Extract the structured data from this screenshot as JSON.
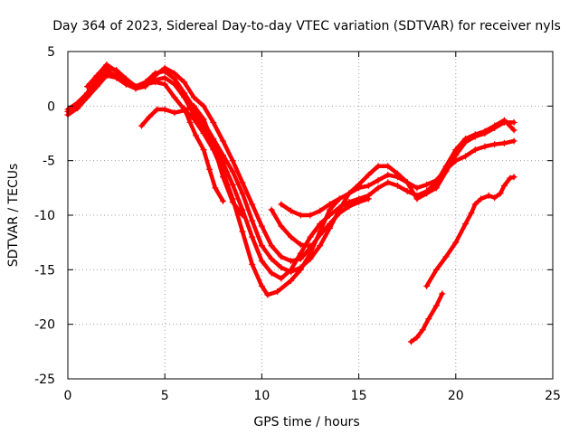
{
  "chart_data": {
    "type": "scatter",
    "title": "Day 364 of 2023, Sidereal Day-to-day VTEC variation (SDTVAR) for receiver nyls",
    "xlabel": "GPS time / hours",
    "ylabel": "SDTVAR / TECUs",
    "xlim": [
      0,
      25
    ],
    "ylim": [
      -25,
      5
    ],
    "xticks": [
      0,
      5,
      10,
      15,
      20,
      25
    ],
    "yticks": [
      5,
      0,
      -5,
      -10,
      -15,
      -20,
      -25
    ],
    "xtick_labels": [
      "0",
      "5",
      "10",
      "15",
      "20",
      "25"
    ],
    "ytick_labels": [
      "5",
      "0",
      "-5",
      "-10",
      "-15",
      "-20",
      "-25"
    ],
    "grid": true,
    "marker": "+",
    "color": "#ff0000",
    "series": [
      {
        "name": "s1",
        "points": [
          [
            0.0,
            -0.8
          ],
          [
            0.5,
            -0.2
          ],
          [
            1.0,
            0.8
          ],
          [
            1.5,
            1.8
          ],
          [
            2.0,
            2.8
          ],
          [
            2.5,
            2.6
          ],
          [
            3.0,
            2.0
          ],
          [
            3.5,
            1.6
          ],
          [
            4.0,
            2.0
          ],
          [
            4.5,
            2.2
          ],
          [
            5.0,
            2.0
          ],
          [
            5.5,
            0.8
          ],
          [
            6.0,
            -0.3
          ],
          [
            6.5,
            -1.2
          ],
          [
            7.0,
            -2.5
          ],
          [
            7.5,
            -4.0
          ],
          [
            8.0,
            -6.0
          ],
          [
            8.5,
            -8.5
          ],
          [
            9.0,
            -11.5
          ],
          [
            9.5,
            -14.5
          ],
          [
            10.0,
            -16.5
          ],
          [
            10.3,
            -17.3
          ],
          [
            10.8,
            -17.0
          ],
          [
            11.5,
            -16.0
          ],
          [
            12.0,
            -15.0
          ],
          [
            12.5,
            -13.5
          ],
          [
            13.0,
            -11.5
          ],
          [
            13.5,
            -9.5
          ],
          [
            14.0,
            -8.5
          ],
          [
            14.5,
            -8.0
          ],
          [
            15.0,
            -7.5
          ],
          [
            15.5,
            -7.3
          ],
          [
            16.0,
            -6.8
          ],
          [
            16.5,
            -6.3
          ],
          [
            17.0,
            -6.5
          ],
          [
            17.5,
            -7.0
          ],
          [
            18.0,
            -8.5
          ],
          [
            18.5,
            -8.0
          ],
          [
            19.0,
            -7.5
          ],
          [
            19.5,
            -6.0
          ],
          [
            20.0,
            -4.5
          ],
          [
            20.5,
            -3.3
          ],
          [
            21.0,
            -2.8
          ],
          [
            21.5,
            -2.5
          ],
          [
            22.0,
            -2.0
          ],
          [
            22.5,
            -1.5
          ],
          [
            23.0,
            -1.5
          ]
        ]
      },
      {
        "name": "s2",
        "points": [
          [
            0.0,
            -0.3
          ],
          [
            0.5,
            0.3
          ],
          [
            1.0,
            1.2
          ],
          [
            1.5,
            2.5
          ],
          [
            2.0,
            3.5
          ],
          [
            2.5,
            3.3
          ],
          [
            3.0,
            2.5
          ],
          [
            3.5,
            1.8
          ],
          [
            4.0,
            2.2
          ],
          [
            4.5,
            3.0
          ],
          [
            5.0,
            3.2
          ],
          [
            5.5,
            2.5
          ],
          [
            6.0,
            1.2
          ],
          [
            6.5,
            -0.2
          ],
          [
            7.0,
            -1.5
          ],
          [
            7.5,
            -3.0
          ],
          [
            8.0,
            -4.5
          ],
          [
            8.5,
            -6.0
          ],
          [
            9.0,
            -8.0
          ],
          [
            9.5,
            -10.5
          ],
          [
            10.0,
            -12.8
          ],
          [
            10.5,
            -14.0
          ],
          [
            11.0,
            -14.8
          ],
          [
            11.5,
            -15.2
          ],
          [
            12.0,
            -14.8
          ],
          [
            12.5,
            -14.0
          ],
          [
            13.0,
            -12.8
          ],
          [
            13.5,
            -11.2
          ],
          [
            14.0,
            -9.5
          ],
          [
            14.5,
            -8.0
          ],
          [
            15.0,
            -7.2
          ],
          [
            15.5,
            -6.3
          ],
          [
            16.0,
            -5.5
          ],
          [
            16.5,
            -5.5
          ],
          [
            17.0,
            -6.2
          ],
          [
            17.5,
            -7.0
          ],
          [
            18.0,
            -7.5
          ],
          [
            18.5,
            -7.2
          ],
          [
            19.0,
            -6.8
          ],
          [
            19.5,
            -5.8
          ],
          [
            20.0,
            -5.0
          ],
          [
            20.5,
            -4.6
          ],
          [
            21.0,
            -4.0
          ],
          [
            21.5,
            -3.7
          ],
          [
            22.0,
            -3.5
          ],
          [
            22.5,
            -3.4
          ],
          [
            23.0,
            -3.2
          ]
        ]
      },
      {
        "name": "s3",
        "points": [
          [
            0.0,
            -0.5
          ],
          [
            0.5,
            0.2
          ],
          [
            1.0,
            1.0
          ],
          [
            1.5,
            2.2
          ],
          [
            2.0,
            3.2
          ],
          [
            2.5,
            2.8
          ],
          [
            3.0,
            2.3
          ],
          [
            3.5,
            1.8
          ],
          [
            4.0,
            2.0
          ],
          [
            4.5,
            2.4
          ],
          [
            5.0,
            2.6
          ],
          [
            5.5,
            2.0
          ],
          [
            6.0,
            0.8
          ],
          [
            6.5,
            -0.8
          ],
          [
            7.0,
            -2.0
          ],
          [
            7.5,
            -3.5
          ],
          [
            8.0,
            -5.2
          ],
          [
            8.5,
            -7.2
          ],
          [
            9.0,
            -9.5
          ],
          [
            9.5,
            -12.0
          ],
          [
            10.0,
            -14.2
          ],
          [
            10.5,
            -15.3
          ],
          [
            11.0,
            -15.8
          ],
          [
            11.5,
            -15.0
          ],
          [
            12.0,
            -13.5
          ],
          [
            12.5,
            -12.0
          ],
          [
            13.0,
            -10.8
          ],
          [
            13.5,
            -10.0
          ],
          [
            14.0,
            -9.3
          ],
          [
            14.5,
            -8.8
          ],
          [
            15.0,
            -8.5
          ],
          [
            15.5,
            -8.2
          ],
          [
            16.0,
            -7.5
          ],
          [
            16.5,
            -7.0
          ],
          [
            17.0,
            -7.3
          ],
          [
            17.5,
            -7.8
          ],
          [
            18.0,
            -8.2
          ],
          [
            18.5,
            -7.8
          ],
          [
            19.0,
            -7.0
          ],
          [
            19.5,
            -5.5
          ],
          [
            20.0,
            -4.0
          ],
          [
            20.5,
            -3.0
          ],
          [
            21.0,
            -2.6
          ],
          [
            21.5,
            -2.3
          ],
          [
            22.0,
            -1.8
          ],
          [
            22.5,
            -1.3
          ],
          [
            23.0,
            -2.2
          ]
        ]
      },
      {
        "name": "s4",
        "points": [
          [
            1.0,
            1.8
          ],
          [
            1.5,
            2.8
          ],
          [
            2.0,
            3.8
          ],
          [
            2.5,
            3.2
          ],
          [
            3.0,
            2.4
          ],
          [
            3.5,
            1.6
          ],
          [
            4.0,
            1.8
          ],
          [
            4.5,
            2.8
          ],
          [
            5.0,
            3.5
          ],
          [
            5.5,
            3.0
          ],
          [
            6.0,
            2.2
          ],
          [
            6.5,
            0.8
          ],
          [
            7.0,
            0.0
          ],
          [
            7.5,
            -1.5
          ],
          [
            8.0,
            -3.2
          ],
          [
            8.5,
            -5.0
          ],
          [
            9.0,
            -7.0
          ],
          [
            9.5,
            -9.0
          ],
          [
            10.0,
            -11.0
          ],
          [
            10.5,
            -12.8
          ],
          [
            11.0,
            -13.8
          ],
          [
            11.5,
            -14.2
          ],
          [
            12.0,
            -14.0
          ],
          [
            12.5,
            -13.0
          ],
          [
            13.0,
            -11.8
          ],
          [
            13.5,
            -10.8
          ],
          [
            14.0,
            -9.8
          ],
          [
            14.5,
            -9.2
          ],
          [
            15.0,
            -8.8
          ],
          [
            15.5,
            -8.5
          ]
        ]
      },
      {
        "name": "s5",
        "points": [
          [
            3.8,
            -1.8
          ],
          [
            4.2,
            -1.0
          ],
          [
            4.6,
            -0.3
          ],
          [
            5.0,
            -0.3
          ],
          [
            5.5,
            -0.6
          ],
          [
            6.0,
            -0.4
          ],
          [
            6.5,
            0.0
          ],
          [
            7.0,
            -1.2
          ],
          [
            7.5,
            -3.5
          ],
          [
            8.0,
            -6.5
          ],
          [
            8.5,
            -8.8
          ],
          [
            9.0,
            -10.0
          ]
        ]
      },
      {
        "name": "s6",
        "points": [
          [
            6.0,
            -0.2
          ],
          [
            6.3,
            -1.5
          ],
          [
            6.6,
            -2.7
          ],
          [
            7.0,
            -4.0
          ],
          [
            7.3,
            -5.8
          ],
          [
            7.6,
            -7.5
          ],
          [
            8.0,
            -8.7
          ]
        ]
      },
      {
        "name": "s7",
        "points": [
          [
            11.0,
            -9.0
          ],
          [
            11.5,
            -9.6
          ],
          [
            12.0,
            -10.0
          ],
          [
            12.5,
            -10.0
          ],
          [
            13.0,
            -9.6
          ],
          [
            13.5,
            -9.0
          ],
          [
            14.0,
            -8.5
          ]
        ]
      },
      {
        "name": "s8",
        "points": [
          [
            10.5,
            -9.5
          ],
          [
            11.0,
            -11.0
          ],
          [
            11.5,
            -12.0
          ],
          [
            12.0,
            -12.7
          ],
          [
            12.5,
            -12.8
          ]
        ]
      },
      {
        "name": "s9",
        "points": [
          [
            17.7,
            -21.6
          ],
          [
            18.0,
            -21.2
          ],
          [
            18.3,
            -20.5
          ],
          [
            18.6,
            -19.5
          ],
          [
            19.0,
            -18.3
          ],
          [
            19.3,
            -17.2
          ]
        ]
      },
      {
        "name": "s10",
        "points": [
          [
            18.5,
            -16.5
          ],
          [
            19.0,
            -15.0
          ],
          [
            19.5,
            -13.8
          ],
          [
            20.0,
            -12.5
          ],
          [
            20.5,
            -10.8
          ],
          [
            20.8,
            -9.8
          ],
          [
            21.0,
            -9.0
          ],
          [
            21.3,
            -8.5
          ],
          [
            21.7,
            -8.2
          ],
          [
            22.0,
            -8.4
          ],
          [
            22.3,
            -8.0
          ],
          [
            22.5,
            -7.3
          ],
          [
            22.8,
            -6.6
          ],
          [
            23.0,
            -6.5
          ]
        ]
      }
    ]
  }
}
